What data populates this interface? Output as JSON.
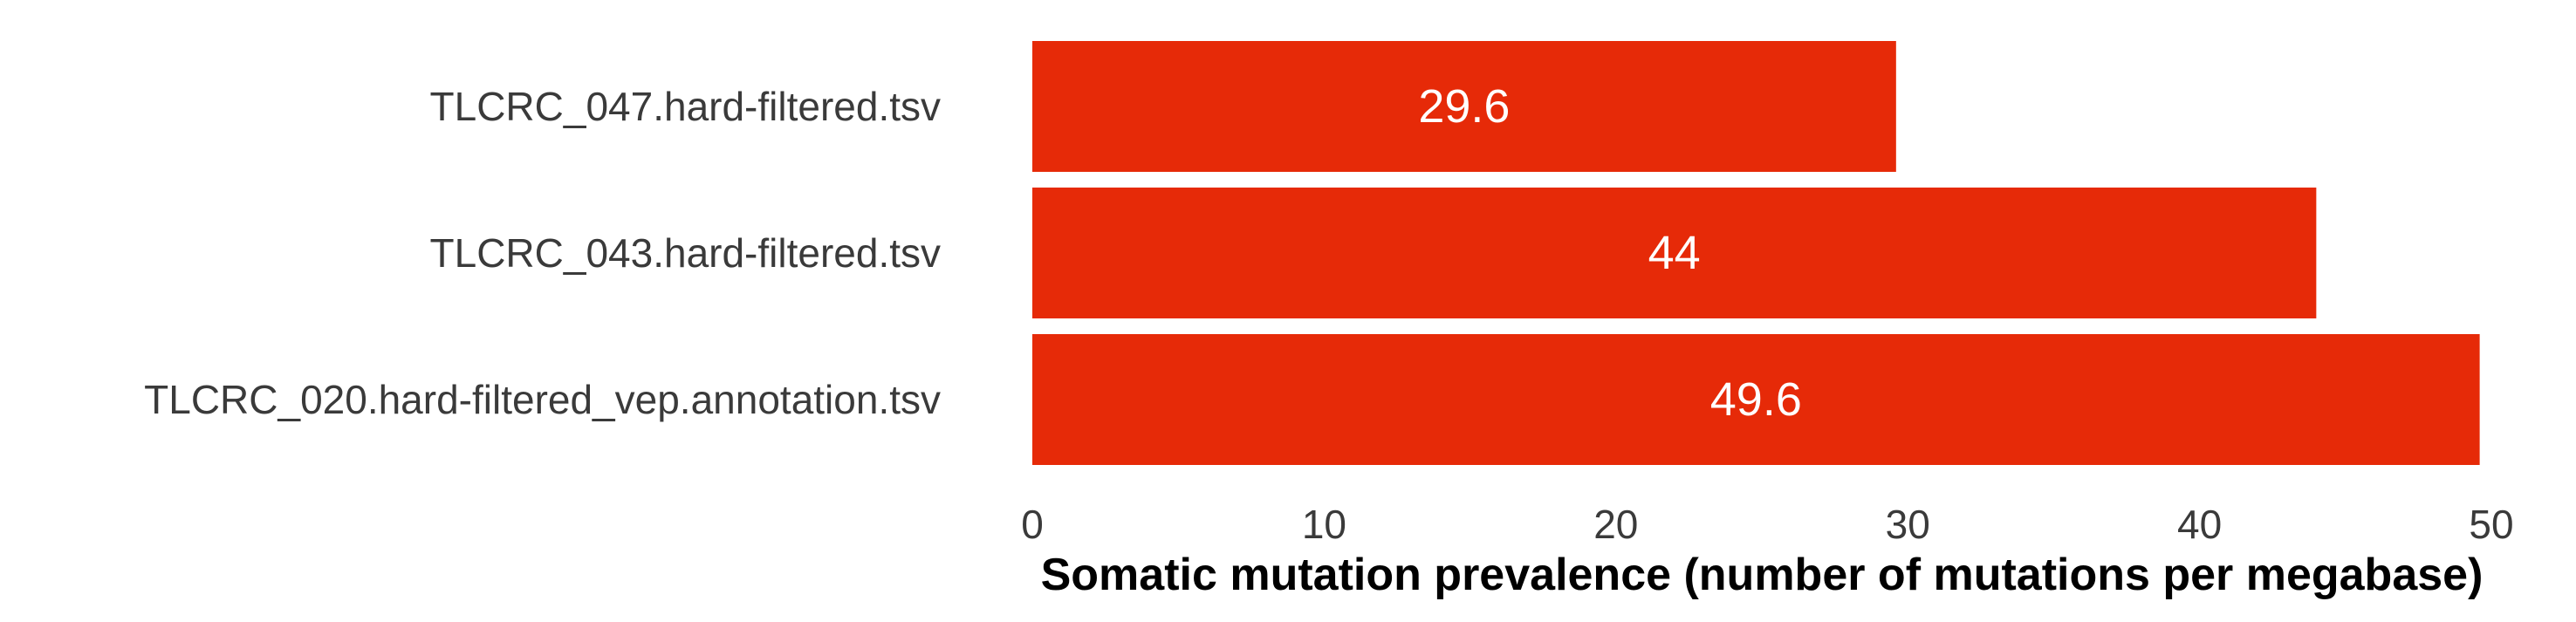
{
  "chart_data": {
    "type": "bar",
    "orientation": "horizontal",
    "categories": [
      "TLCRC_047.hard-filtered.tsv",
      "TLCRC_043.hard-filtered.tsv",
      "TLCRC_020.hard-filtered_vep.annotation.tsv"
    ],
    "values": [
      29.6,
      44,
      49.6
    ],
    "value_labels": [
      "29.6",
      "44",
      "49.6"
    ],
    "xlabel": "Somatic mutation prevalence (number of mutations per megabase)",
    "ylabel": "",
    "xlim": [
      0,
      50
    ],
    "xticks": [
      0,
      10,
      20,
      30,
      40,
      50
    ],
    "grid": false,
    "legend": "none",
    "bar_color": "#e62a08",
    "bar_label_color": "#ffffff",
    "text_color": "#3a3a3a"
  }
}
